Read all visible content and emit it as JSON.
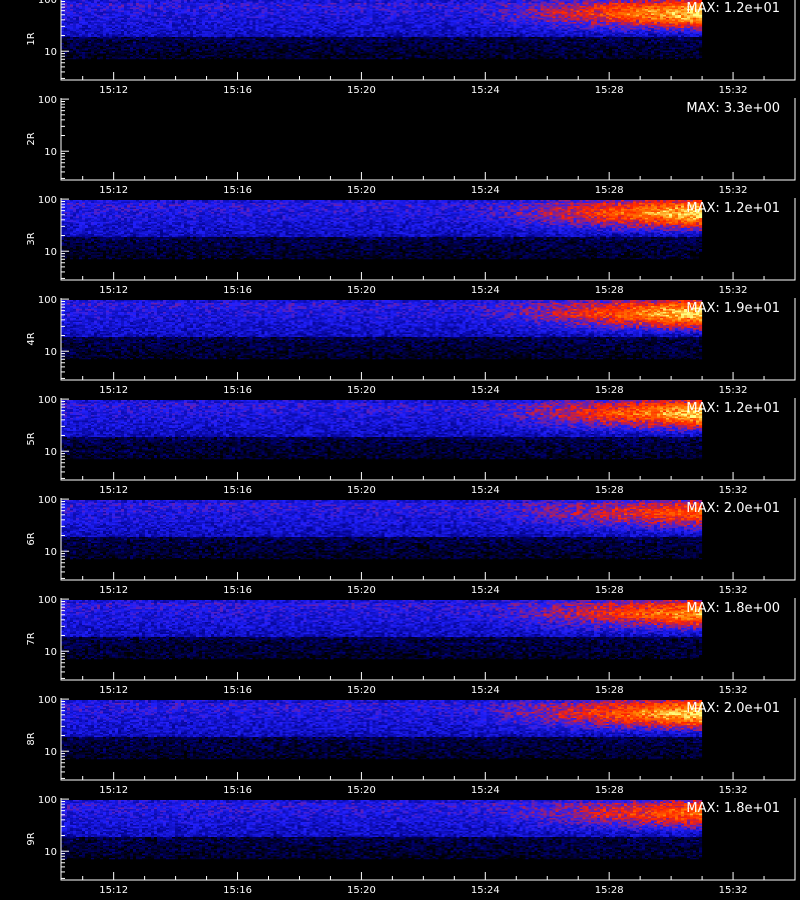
{
  "chart_data": {
    "type": "heatmap",
    "title": "",
    "xlabel": "",
    "ylabel": "",
    "x_tick_labels": [
      "15:12",
      "15:16",
      "15:20",
      "15:24",
      "15:28",
      "15:32"
    ],
    "x_tick_minutes": [
      12,
      16,
      20,
      24,
      28,
      32
    ],
    "x_range_minutes": [
      10.3,
      34.0
    ],
    "data_end_minute": 31.0,
    "y_tick_labels": [
      "100",
      "10"
    ],
    "y_tick_values": [
      100,
      10
    ],
    "y_range": [
      2.8,
      105
    ],
    "y_scale": "log",
    "colormap": [
      "#000000",
      "#000080",
      "#2020ff",
      "#ff2000",
      "#ff8000",
      "#ffff80"
    ],
    "panels": [
      {
        "label": "1R",
        "max_label": "MAX: 1.2e+01",
        "intensity": 0.95,
        "has_data": true
      },
      {
        "label": "2R",
        "max_label": "MAX: 3.3e+00",
        "intensity": 0.0,
        "has_data": false
      },
      {
        "label": "3R",
        "max_label": "MAX: 1.2e+01",
        "intensity": 0.95,
        "has_data": true
      },
      {
        "label": "4R",
        "max_label": "MAX: 1.9e+01",
        "intensity": 0.95,
        "has_data": true
      },
      {
        "label": "5R",
        "max_label": "MAX: 1.2e+01",
        "intensity": 0.9,
        "has_data": true
      },
      {
        "label": "6R",
        "max_label": "MAX: 2.0e+01",
        "intensity": 0.55,
        "has_data": true
      },
      {
        "label": "7R",
        "max_label": "MAX: 1.8e+00",
        "intensity": 0.75,
        "has_data": true
      },
      {
        "label": "8R",
        "max_label": "MAX: 2.0e+01",
        "intensity": 0.95,
        "has_data": true
      },
      {
        "label": "9R",
        "max_label": "MAX: 1.8e+01",
        "intensity": 0.6,
        "has_data": true
      }
    ]
  }
}
